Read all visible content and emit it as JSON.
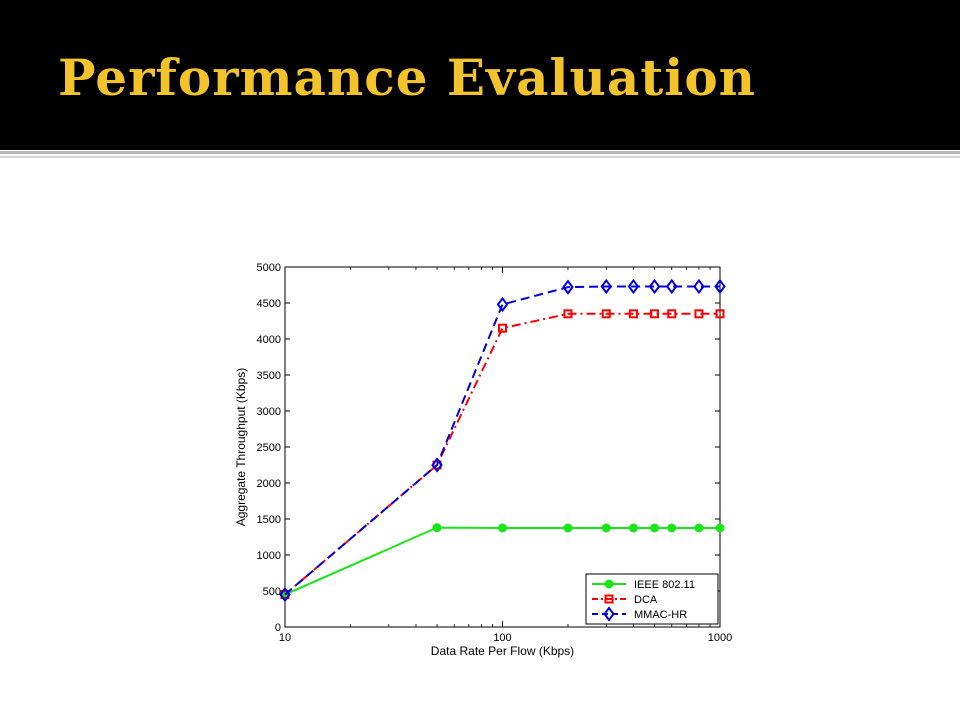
{
  "slide": {
    "title": "Performance Evaluation"
  },
  "chart_data": {
    "type": "line",
    "xscale": "log",
    "xlim": [
      10,
      1000
    ],
    "ylim": [
      0,
      5000
    ],
    "xticks": [
      10,
      100,
      1000
    ],
    "yticks": [
      0,
      500,
      1000,
      1500,
      2000,
      2500,
      3000,
      3500,
      4000,
      4500,
      5000
    ],
    "xlabel": "Data Rate Per Flow (Kbps)",
    "ylabel": "Aggregate Throughput (Kbps)",
    "grid": false,
    "legend_position": "bottom-right",
    "x": [
      10,
      50,
      100,
      200,
      300,
      400,
      500,
      600,
      800,
      1000
    ],
    "series": [
      {
        "name": "IEEE 802.11",
        "color": "#19e619",
        "marker": "circle",
        "line_style": "solid",
        "values": [
          450,
          1380,
          1375,
          1375,
          1375,
          1375,
          1375,
          1375,
          1375,
          1375
        ]
      },
      {
        "name": "DCA",
        "color": "#ff0000",
        "marker": "square",
        "line_style": "dash-dot",
        "values": [
          450,
          2250,
          4150,
          4350,
          4350,
          4350,
          4350,
          4350,
          4350,
          4350
        ]
      },
      {
        "name": "MMAC-HR",
        "color": "#0000dd",
        "marker": "diamond",
        "line_style": "dashed",
        "values": [
          450,
          2250,
          4480,
          4720,
          4730,
          4730,
          4730,
          4730,
          4730,
          4730
        ]
      }
    ]
  }
}
